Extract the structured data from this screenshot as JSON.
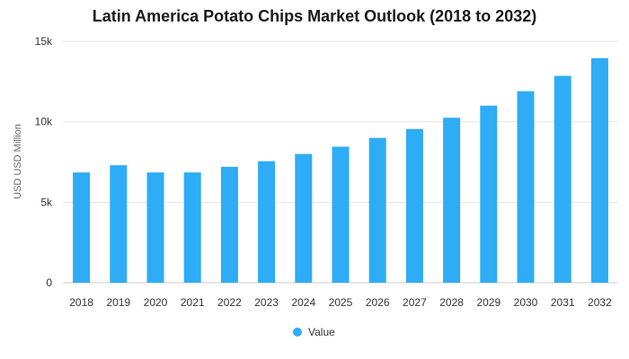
{
  "chart_data": {
    "type": "bar",
    "title": "Latin America Potato Chips Market Outlook (2018 to 2032)",
    "xlabel": "",
    "ylabel": "USD USD Million",
    "categories": [
      "2018",
      "2019",
      "2020",
      "2021",
      "2022",
      "2023",
      "2024",
      "2025",
      "2026",
      "2027",
      "2028",
      "2029",
      "2030",
      "2031",
      "2032"
    ],
    "series": [
      {
        "name": "Value",
        "values": [
          6850,
          7300,
          6850,
          6850,
          7200,
          7550,
          8000,
          8450,
          9000,
          9550,
          10250,
          11000,
          11900,
          12850,
          13950
        ],
        "color": "#2eacf6"
      }
    ],
    "ylim": [
      0,
      15000
    ],
    "yticks": [
      0,
      5000,
      10000,
      15000
    ],
    "ytick_labels": [
      "0",
      "5k",
      "10k",
      "15k"
    ],
    "grid": true,
    "legend_position": "bottom-center"
  }
}
